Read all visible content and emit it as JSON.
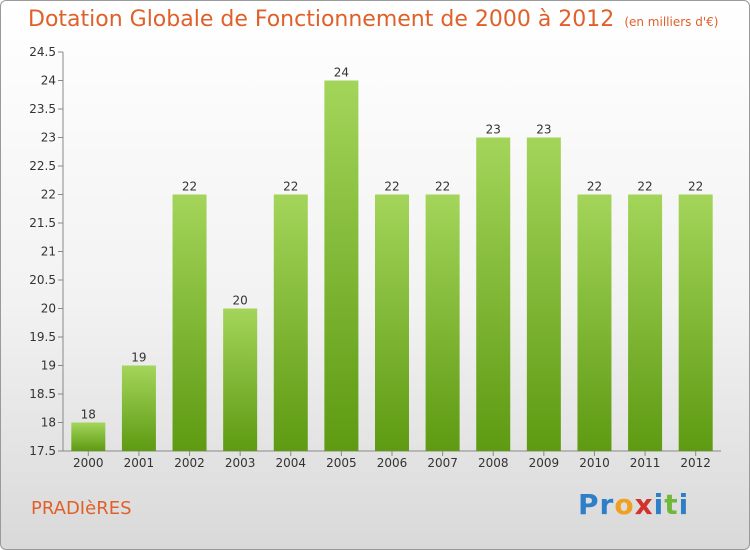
{
  "header": {
    "title": "Dotation Globale de Fonctionnement de 2000 à 2012",
    "unit": "(en milliers d'€)"
  },
  "footer": {
    "commune": "PRADIèRES",
    "logo_letters": [
      "P",
      "r",
      "o",
      "x",
      "i",
      "t",
      "i"
    ]
  },
  "colors": {
    "accent": "#e0602a",
    "bar_top": "#a3d55a",
    "bar_bottom": "#5e9a12",
    "logo": [
      "#2f7fc8",
      "#2f7fc8",
      "#f0a020",
      "#d2322a",
      "#2f7fc8",
      "#70b83a",
      "#2f7fc8"
    ]
  },
  "chart_data": {
    "type": "bar",
    "title": "Dotation Globale de Fonctionnement de 2000 à 2012",
    "categories": [
      "2000",
      "2001",
      "2002",
      "2003",
      "2004",
      "2005",
      "2006",
      "2007",
      "2008",
      "2009",
      "2010",
      "2011",
      "2012"
    ],
    "values": [
      18,
      19,
      22,
      20,
      22,
      24,
      22,
      22,
      23,
      23,
      22,
      22,
      22
    ],
    "ylim": [
      17.5,
      24.5
    ],
    "yticks": [
      17.5,
      18,
      18.5,
      19,
      19.5,
      20,
      20.5,
      21,
      21.5,
      22,
      22.5,
      23,
      23.5,
      24,
      24.5
    ],
    "grid": false,
    "legend": "none"
  }
}
